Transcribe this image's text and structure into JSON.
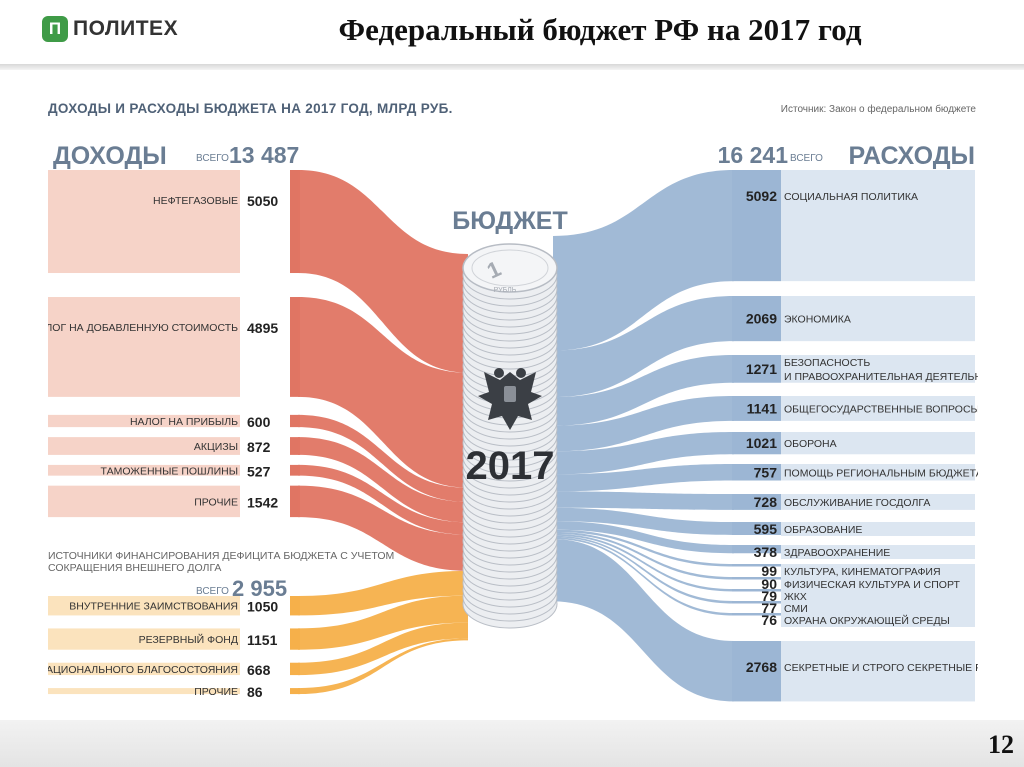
{
  "header": {
    "logo_mark": "П",
    "logo_text": "ПОЛИТЕХ",
    "title": "Федеральный бюджет РФ на 2017 год"
  },
  "footer": {
    "page_number": "12"
  },
  "infographic": {
    "heading": "ДОХОДЫ И РАСХОДЫ БЮДЖЕТА НА 2017 ГОД, МЛРД РУБ.",
    "source": "Источник: Закон о федеральном бюджете",
    "center_title": "БЮДЖЕТ",
    "coin_value": "1",
    "coin_unit": "РУБЛЬ",
    "year": "2017",
    "income_label": "ДОХОДЫ",
    "income_total_prefix": "ВСЕГО",
    "income_total": "13 487",
    "expense_total": "16 241",
    "expense_total_suffix": "ВСЕГО",
    "expense_label": "РАСХОДЫ",
    "deficit_note_line1": "ИСТОЧНИКИ ФИНАНСИРОВАНИЯ ДЕФИЦИТА БЮДЖЕТА С УЧЕТОМ",
    "deficit_note_line2": "СОКРАЩЕНИЯ ВНЕШНЕГО ДОЛГА",
    "deficit_total_prefix": "ВСЕГО",
    "deficit_total": "2 955"
  },
  "colors": {
    "income": "#e07563",
    "income_box": "#f6d3c8",
    "deficit": "#f6b04a",
    "deficit_box": "#fbe3bd",
    "expense": "#9cb6d4",
    "expense_box": "#dce6f1",
    "heading": "#5c6f86"
  },
  "chart_data": {
    "type": "sankey",
    "title": "ДОХОДЫ И РАСХОДЫ БЮДЖЕТА НА 2017 ГОД, МЛРД РУБ.",
    "income": [
      {
        "label": "НЕФТЕГАЗОВЫЕ",
        "value": 5050
      },
      {
        "label": "НАЛОГ НА ДОБАВЛЕННУЮ СТОИМОСТЬ",
        "value": 4895
      },
      {
        "label": "НАЛОГ НА ПРИБЫЛЬ",
        "value": 600
      },
      {
        "label": "АКЦИЗЫ",
        "value": 872
      },
      {
        "label": "ТАМОЖЕННЫЕ ПОШЛИНЫ",
        "value": 527
      },
      {
        "label": "ПРОЧИЕ",
        "value": 1542
      }
    ],
    "deficit_financing": [
      {
        "label": "ВНУТРЕННИЕ ЗАИМСТВОВАНИЯ",
        "value": 1050
      },
      {
        "label": "РЕЗЕРВНЫЙ ФОНД",
        "value": 1151
      },
      {
        "label": "ФОНД НАЦИОНАЛЬНОГО БЛАГОСОСТОЯНИЯ",
        "value": 668
      },
      {
        "label": "ПРОЧИЕ",
        "value": 86
      }
    ],
    "expenses": [
      {
        "label": "СОЦИАЛЬНАЯ ПОЛИТИКА",
        "value": 5092
      },
      {
        "label": "ЭКОНОМИКА",
        "value": 2069
      },
      {
        "label": "БЕЗОПАСНОСТЬ|И ПРАВООХРАНИТЕЛЬНАЯ ДЕЯТЕЛЬНОСТЬ",
        "value": 1271
      },
      {
        "label": "ОБЩЕГОСУДАРСТВЕННЫЕ ВОПРОСЫ",
        "value": 1141
      },
      {
        "label": "ОБОРОНА",
        "value": 1021
      },
      {
        "label": "ПОМОЩЬ РЕГИОНАЛЬНЫМ БЮДЖЕТАМ",
        "value": 757
      },
      {
        "label": "ОБСЛУЖИВАНИЕ ГОСДОЛГА",
        "value": 728
      },
      {
        "label": "ОБРАЗОВАНИЕ",
        "value": 595
      },
      {
        "label": "ЗДРАВООХРАНЕНИЕ",
        "value": 378
      },
      {
        "label": "КУЛЬТУРА, КИНЕМАТОГРАФИЯ",
        "value": 99
      },
      {
        "label": "ФИЗИЧЕСКАЯ КУЛЬТУРА И СПОРТ",
        "value": 90
      },
      {
        "label": "ЖКХ",
        "value": 79
      },
      {
        "label": "СМИ",
        "value": 77
      },
      {
        "label": "ОХРАНА ОКРУЖАЮЩЕЙ СРЕДЫ",
        "value": 76
      },
      {
        "label": "СЕКРЕТНЫЕ И СТРОГО СЕКРЕТНЫЕ РАСХОДЫ",
        "value": 2768
      }
    ]
  }
}
